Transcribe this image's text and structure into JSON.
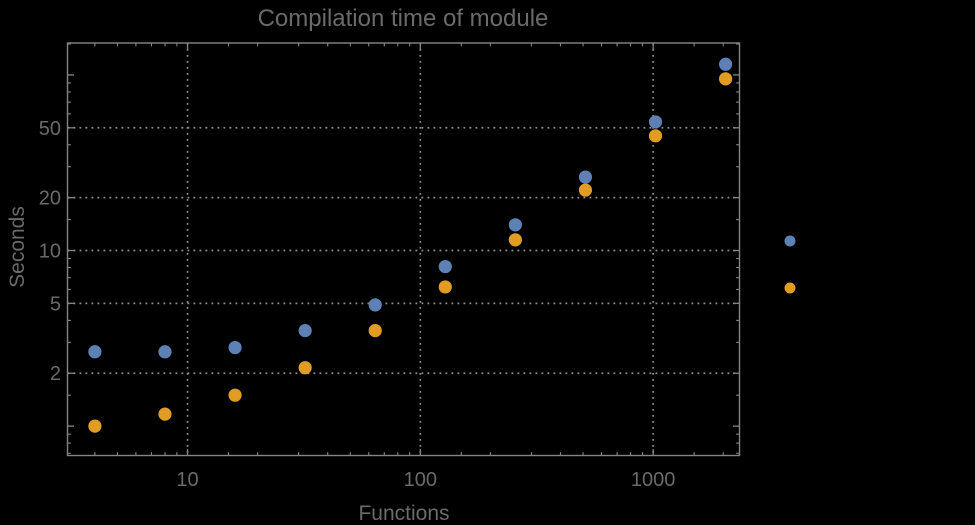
{
  "window": {
    "background": "#000000"
  },
  "chart_data": {
    "type": "scatter",
    "title": "Compilation time of module",
    "xlabel": "Functions",
    "ylabel": "Seconds",
    "xscale": "log",
    "yscale": "log",
    "xlim": [
      3.05,
      2350
    ],
    "ylim": [
      0.68,
      152
    ],
    "grid": true,
    "grid_x_values": [
      10,
      100,
      1000
    ],
    "grid_y_values": [
      2,
      5,
      10,
      20,
      50
    ],
    "x_ticks_major": [
      {
        "value": 10,
        "label": "10"
      },
      {
        "value": 100,
        "label": "100"
      },
      {
        "value": 1000,
        "label": "1000"
      }
    ],
    "y_ticks_major": [
      {
        "value": 1,
        "label": ""
      },
      {
        "value": 2,
        "label": "2"
      },
      {
        "value": 5,
        "label": "5"
      },
      {
        "value": 10,
        "label": "10"
      },
      {
        "value": 20,
        "label": "20"
      },
      {
        "value": 50,
        "label": "50"
      },
      {
        "value": 100,
        "label": ""
      }
    ],
    "x": [
      4,
      8,
      16,
      32,
      64,
      128,
      256,
      512,
      1024,
      2048
    ],
    "series": [
      {
        "name": "series-1-blue",
        "label": "",
        "color": "#5E81B5",
        "values": [
          2.65,
          2.65,
          2.8,
          3.5,
          4.9,
          8.1,
          14,
          26.2,
          54,
          115
        ]
      },
      {
        "name": "series-2-orange",
        "label": "",
        "color": "#E19C24",
        "values": [
          1.0,
          1.17,
          1.5,
          2.15,
          3.5,
          6.2,
          11.5,
          22.1,
          45,
          95
        ]
      }
    ],
    "legend": {
      "position": "outside-right",
      "markers": [
        {
          "color": "#5E81B5",
          "label": ""
        },
        {
          "color": "#E19C24",
          "label": ""
        }
      ]
    },
    "colors": {
      "text": "#6a6a6a",
      "frame": "#858585",
      "grid": "#8f8f8f",
      "ticks": "#858585",
      "background": "#000000"
    }
  }
}
